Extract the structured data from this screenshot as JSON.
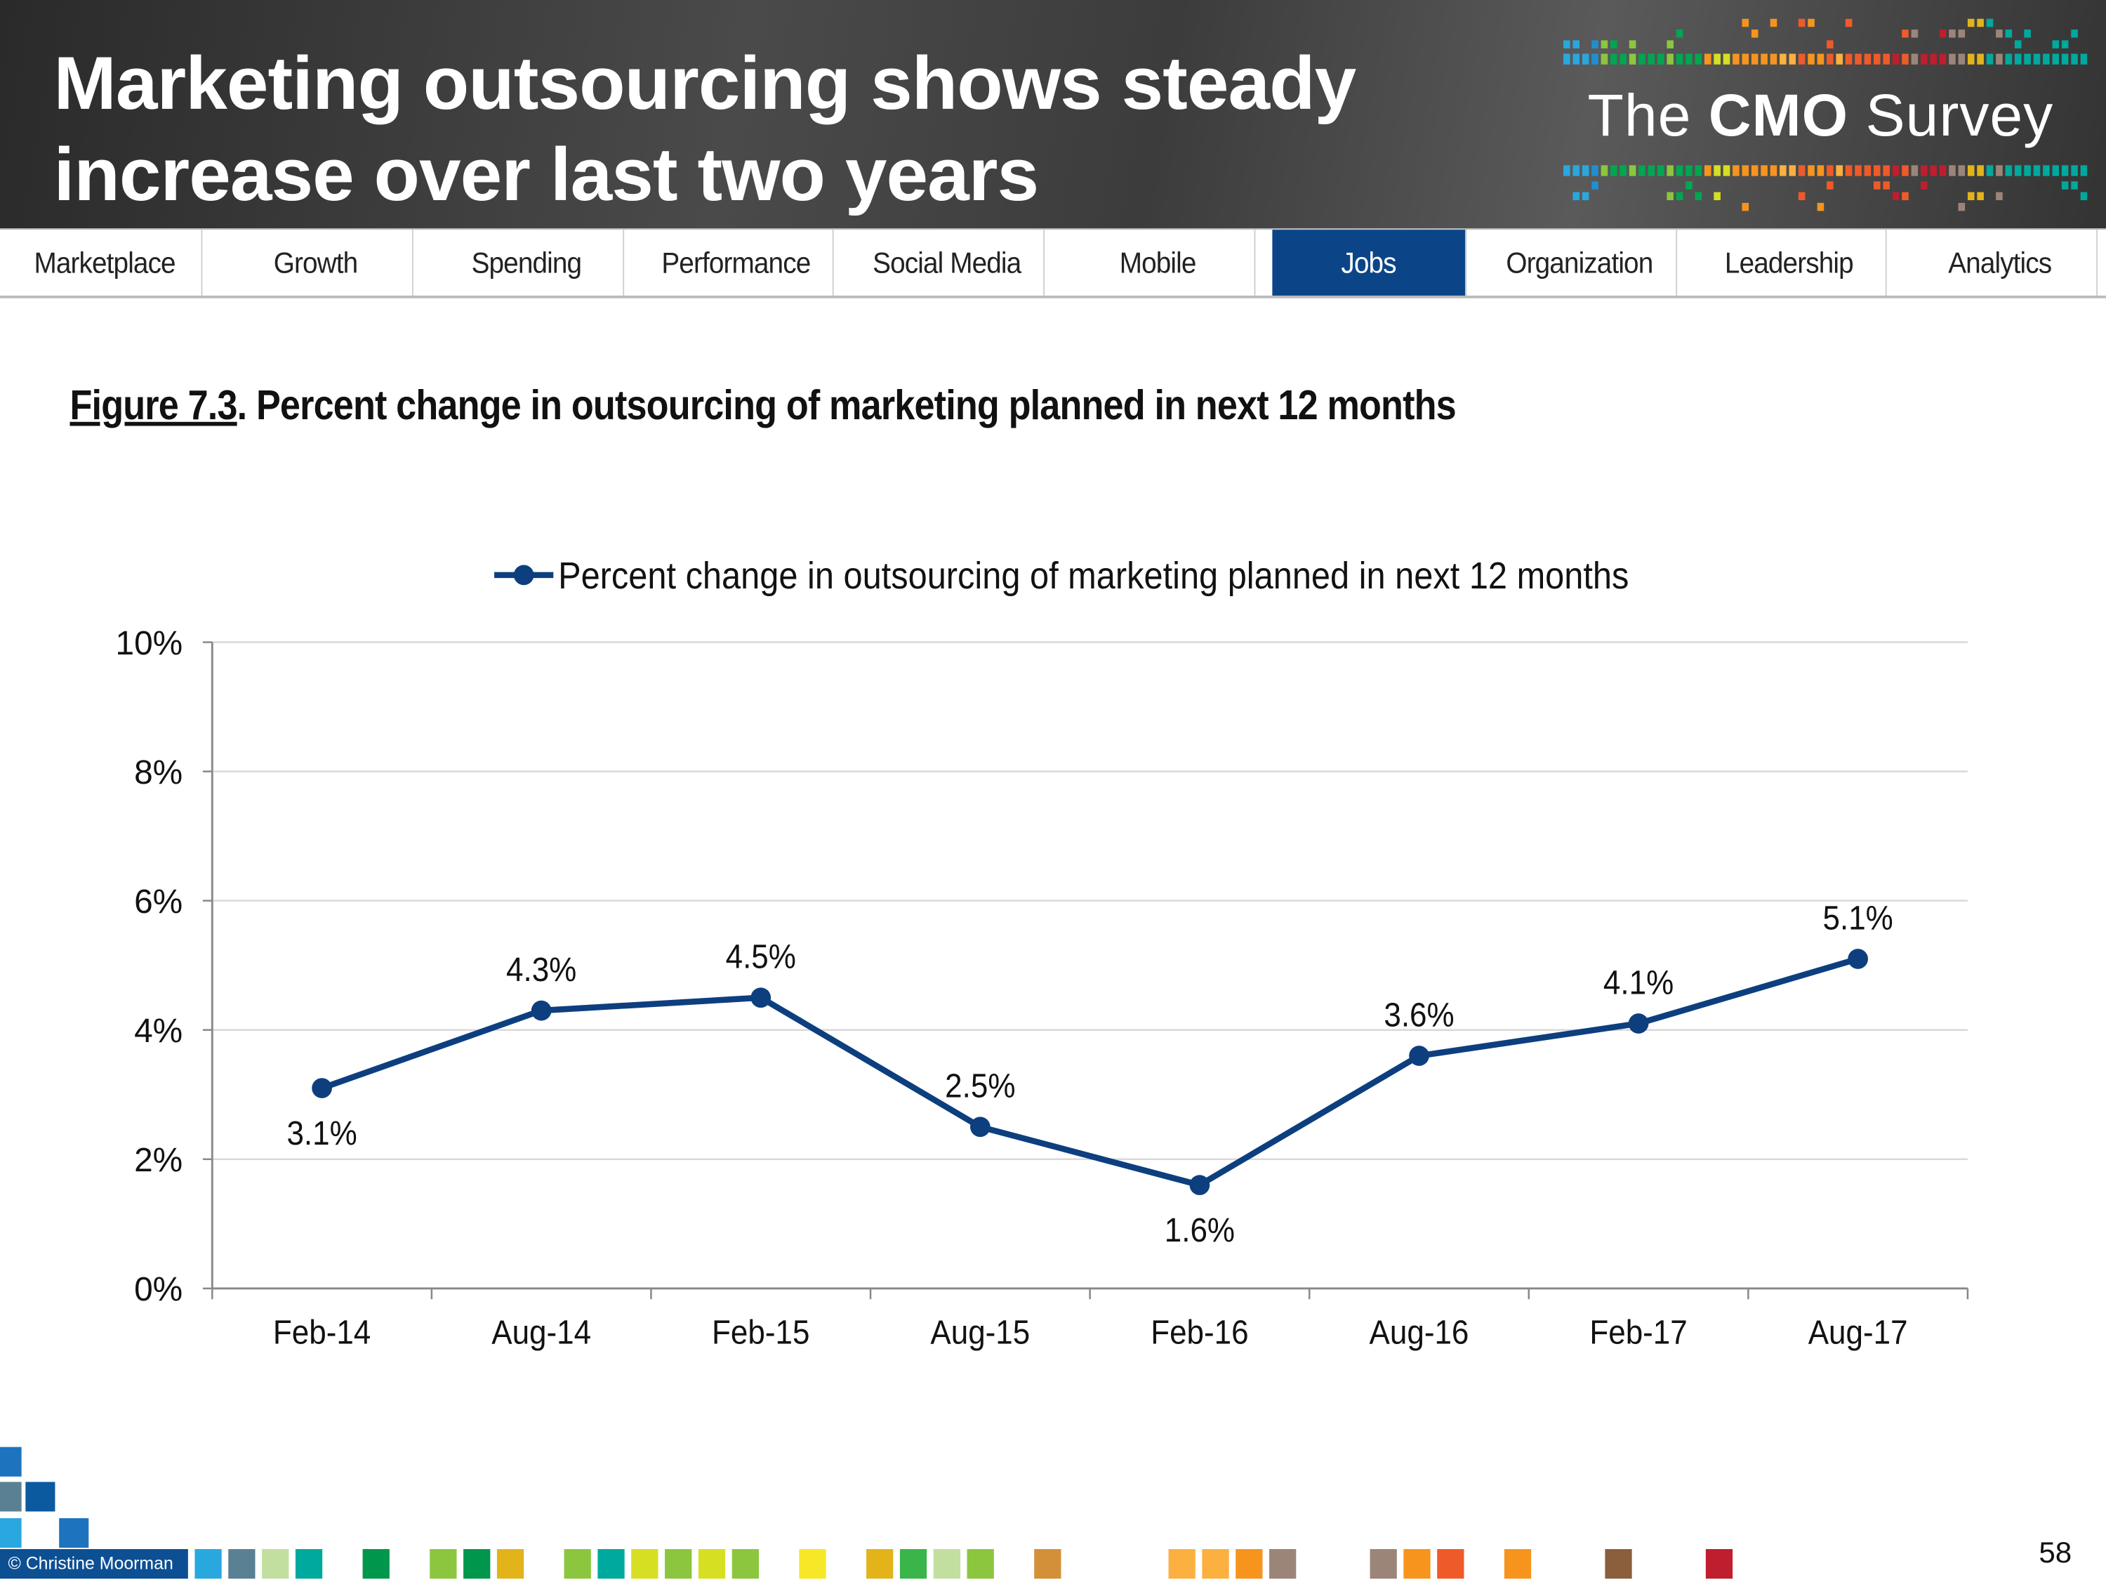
{
  "header": {
    "title_line1": "Marketing outsourcing shows steady",
    "title_line2": "increase over last two years",
    "logo_the": "The",
    "logo_cmo": "CMO",
    "logo_survey": "Survey"
  },
  "nav": {
    "tabs": [
      {
        "label": "Marketplace",
        "active": false
      },
      {
        "label": "Growth",
        "active": false
      },
      {
        "label": "Spending",
        "active": false
      },
      {
        "label": "Performance",
        "active": false
      },
      {
        "label": "Social Media",
        "active": false
      },
      {
        "label": "Mobile",
        "active": false
      },
      {
        "label": "Jobs",
        "active": true
      },
      {
        "label": "Organization",
        "active": false
      },
      {
        "label": "Leadership",
        "active": false
      },
      {
        "label": "Analytics",
        "active": false
      }
    ],
    "active_color": "#0b4587"
  },
  "figure": {
    "label": "Figure 7.3",
    "title": ".  Percent change in outsourcing of marketing planned in next 12 months"
  },
  "chart_data": {
    "type": "line",
    "categories": [
      "Feb-14",
      "Aug-14",
      "Feb-15",
      "Aug-15",
      "Feb-16",
      "Aug-16",
      "Feb-17",
      "Aug-17"
    ],
    "series": [
      {
        "name": "Percent change in outsourcing of marketing planned in next 12 months",
        "values": [
          3.1,
          4.3,
          4.5,
          2.5,
          1.6,
          3.6,
          4.1,
          5.1
        ],
        "labels": [
          "3.1%",
          "4.3%",
          "4.5%",
          "2.5%",
          "1.6%",
          "3.6%",
          "4.1%",
          "5.1%"
        ],
        "color": "#0d3f7f"
      }
    ],
    "ylim": [
      0,
      10
    ],
    "yticks": [
      "0%",
      "2%",
      "4%",
      "6%",
      "8%",
      "10%"
    ],
    "ytick_values": [
      0,
      2,
      4,
      6,
      8,
      10
    ],
    "grid": true,
    "legend": "top-center"
  },
  "footer": {
    "copyright": "© Christine Moorman",
    "page_number": "58"
  }
}
